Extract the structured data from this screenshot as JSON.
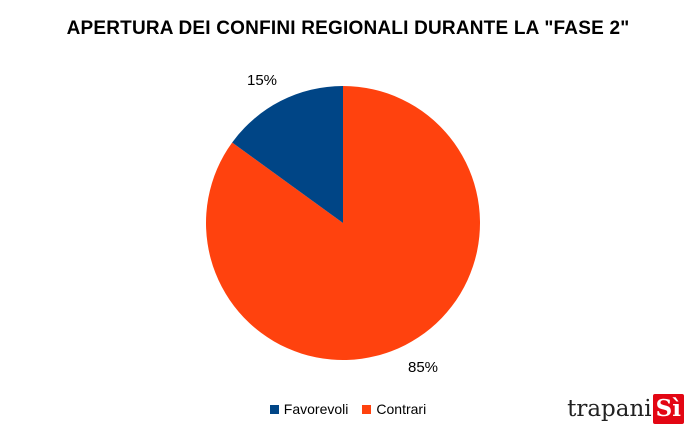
{
  "chart_data": {
    "type": "pie",
    "title": "APERTURA DEI CONFINI REGIONALI DURANTE LA \"FASE 2\"",
    "slices": [
      {
        "label": "Favorevoli",
        "value": 15,
        "display": "15%",
        "color": "#004586"
      },
      {
        "label": "Contrari",
        "value": 85,
        "display": "85%",
        "color": "#ff420e"
      }
    ],
    "legend_position": "bottom"
  },
  "logo": {
    "text": "trapani",
    "box_text": "Sì",
    "box_color": "#e30613"
  }
}
